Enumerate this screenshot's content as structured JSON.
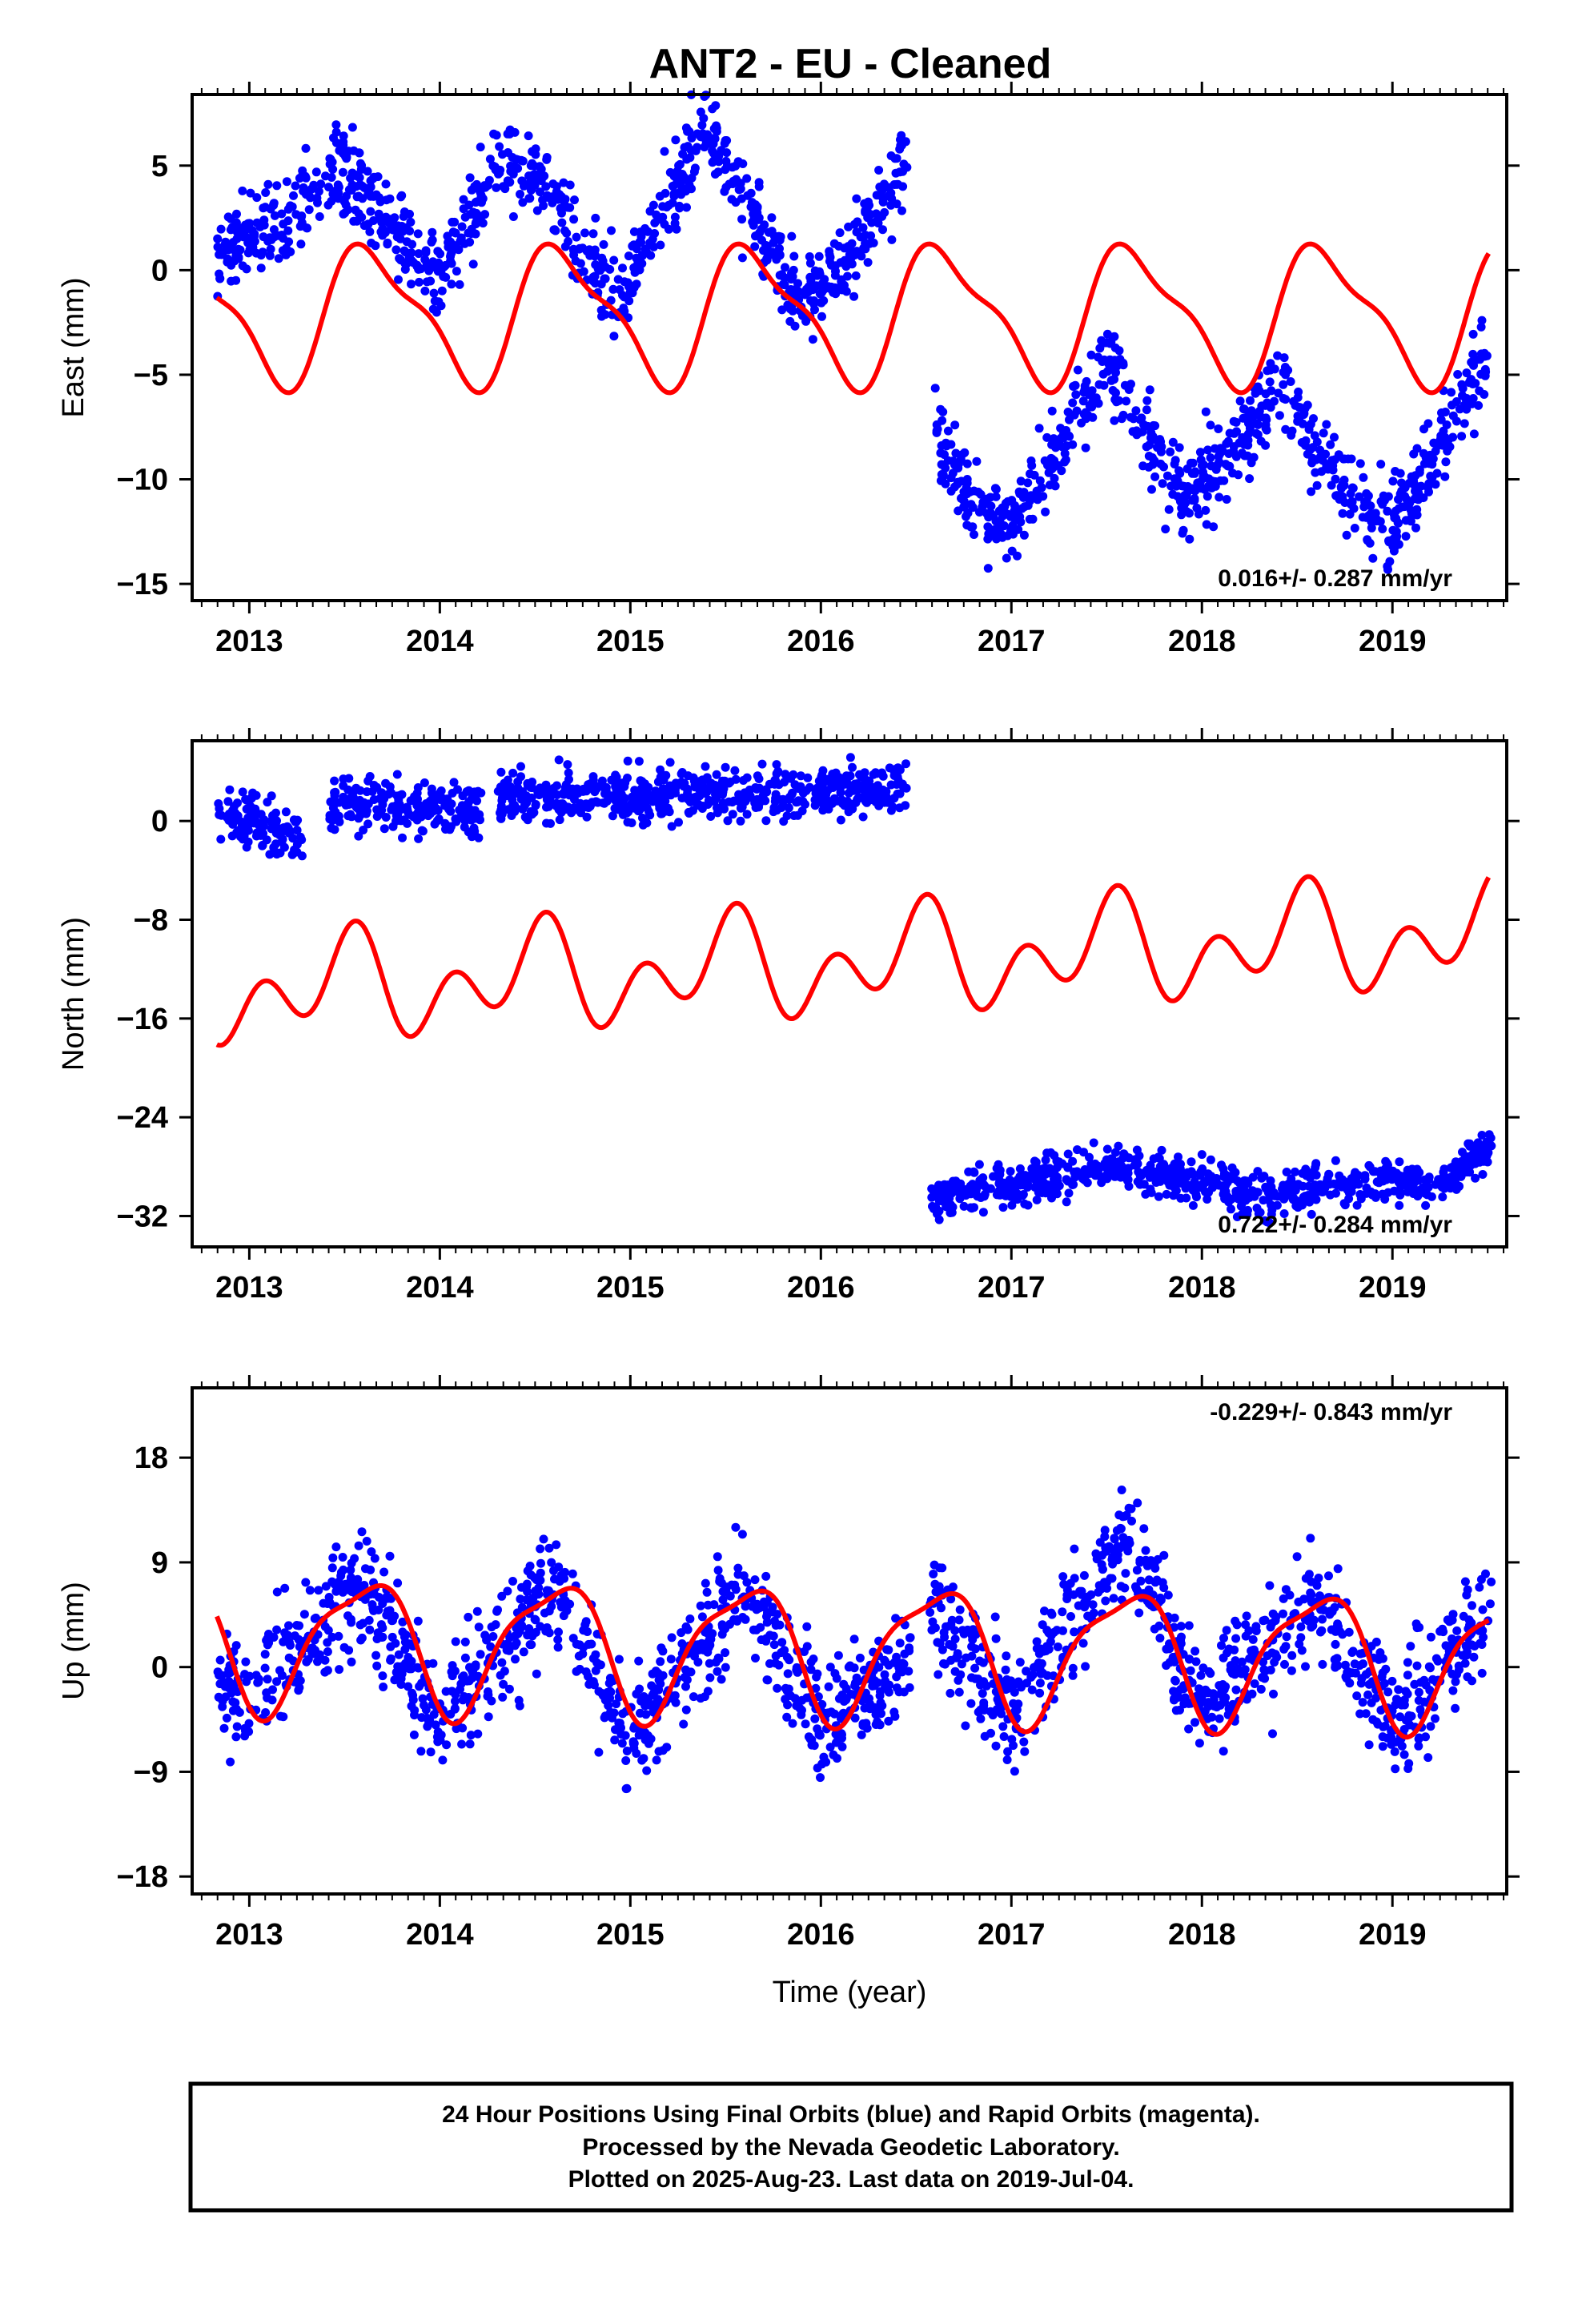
{
  "title": "ANT2  - EU - Cleaned",
  "colors": {
    "points": "#0000ff",
    "model": "#ff0000",
    "frame": "#000000"
  },
  "footer": {
    "line1": "24 Hour Positions Using Final Orbits (blue) and Rapid Orbits (magenta).",
    "line2": "Processed by the Nevada Geodetic Laboratory.",
    "line3": "Plotted on 2025-Aug-23. Last data on 2019-Jul-04."
  },
  "chart_data": [
    {
      "type": "scatter",
      "ylabel": "East (mm)",
      "xlabel": "",
      "rate_text": "0.016+/- 0.287 mm/yr",
      "rate_position": "bottom-right",
      "xlim": [
        2012.7,
        2019.6
      ],
      "ylim": [
        -15.8,
        8.4
      ],
      "xticks": [
        2013,
        2014,
        2015,
        2016,
        2017,
        2018,
        2019
      ],
      "xtick_labels": [
        "2013",
        "2014",
        "2015",
        "2016",
        "2017",
        "2018",
        "2019"
      ],
      "yticks": [
        5,
        0,
        -5,
        -10,
        -15
      ],
      "ytick_labels": [
        "5",
        "0",
        "−5",
        "−10",
        "−15"
      ],
      "series": [
        {
          "kind": "points",
          "segments": [
            {
              "x_range": [
                2012.83,
                2016.47
              ],
              "trend": [
                [
                  2012.83,
                  0.5
                ],
                [
                  2013.3,
                  3.5
                ],
                [
                  2013.47,
                  5.0
                ],
                [
                  2013.9,
                  0.5
                ],
                [
                  2014.0,
                  -0.5
                ],
                [
                  2014.3,
                  5.0
                ],
                [
                  2014.5,
                  4.5
                ],
                [
                  2014.95,
                  -1.5
                ],
                [
                  2015.1,
                  2.0
                ],
                [
                  2015.4,
                  7.0
                ],
                [
                  2015.55,
                  4.0
                ],
                [
                  2015.9,
                  -1.5
                ],
                [
                  2016.1,
                  0.0
                ],
                [
                  2016.47,
                  5.5
                ]
              ],
              "scatter": 1.4
            },
            {
              "x_range": [
                2016.6,
                2019.5
              ],
              "trend": [
                [
                  2016.6,
                  -7.5
                ],
                [
                  2016.75,
                  -10.5
                ],
                [
                  2017.0,
                  -12.5
                ],
                [
                  2017.5,
                  -4.0
                ],
                [
                  2017.6,
                  -6.5
                ],
                [
                  2017.9,
                  -11.0
                ],
                [
                  2018.3,
                  -7.0
                ],
                [
                  2018.45,
                  -5.0
                ],
                [
                  2018.6,
                  -9.0
                ],
                [
                  2019.0,
                  -12.5
                ],
                [
                  2019.5,
                  -4.0
                ]
              ],
              "scatter": 1.4
            }
          ]
        },
        {
          "kind": "model",
          "mean": -2.1,
          "amp1": -3.1,
          "phase1": 0.15,
          "amp2": 1.0,
          "phase2": 0.0
        }
      ]
    },
    {
      "type": "scatter",
      "ylabel": "North (mm)",
      "xlabel": "",
      "rate_text": "0.722+/- 0.284 mm/yr",
      "rate_position": "bottom-right",
      "xlim": [
        2012.7,
        2019.6
      ],
      "ylim": [
        -34.5,
        6.5
      ],
      "xticks": [
        2013,
        2014,
        2015,
        2016,
        2017,
        2018,
        2019
      ],
      "xtick_labels": [
        "2013",
        "2014",
        "2015",
        "2016",
        "2017",
        "2018",
        "2019"
      ],
      "yticks": [
        0,
        -8,
        -16,
        -24,
        -32
      ],
      "ytick_labels": [
        "0",
        "−8",
        "−16",
        "−24",
        "−32"
      ],
      "series": [
        {
          "kind": "points",
          "segments": [
            {
              "x_range": [
                2012.83,
                2013.28
              ],
              "trend": [
                [
                  2012.83,
                  0.5
                ],
                [
                  2013.28,
                  -1.0
                ]
              ],
              "scatter": 1.6
            },
            {
              "x_range": [
                2013.42,
                2014.22
              ],
              "trend": [
                [
                  2013.42,
                  1.5
                ],
                [
                  2014.22,
                  1.0
                ]
              ],
              "scatter": 1.6
            },
            {
              "x_range": [
                2014.3,
                2016.45
              ],
              "trend": [
                [
                  2014.3,
                  2.0
                ],
                [
                  2016.45,
                  2.5
                ]
              ],
              "scatter": 1.5
            },
            {
              "x_range": [
                2016.58,
                2019.52
              ],
              "trend": [
                [
                  2016.58,
                  -31.0
                ],
                [
                  2017.0,
                  -29.5
                ],
                [
                  2017.5,
                  -28.0
                ],
                [
                  2018.0,
                  -29.0
                ],
                [
                  2018.3,
                  -30.5
                ],
                [
                  2018.6,
                  -29.5
                ],
                [
                  2019.0,
                  -29.0
                ],
                [
                  2019.25,
                  -29.5
                ],
                [
                  2019.5,
                  -26.5
                ]
              ],
              "scatter": 1.2
            }
          ]
        },
        {
          "kind": "model",
          "mean": -11.5,
          "amp1": -2.5,
          "phase1": 0.0,
          "amp2": 3.0,
          "phase2": 0.07,
          "trend_per_year": 0.72
        }
      ]
    },
    {
      "type": "scatter",
      "ylabel": "Up (mm)",
      "xlabel": "Time (year)",
      "rate_text": "-0.229+/- 0.843 mm/yr",
      "rate_position": "top-right",
      "xlim": [
        2012.7,
        2019.6
      ],
      "ylim": [
        -19.5,
        24.0
      ],
      "xticks": [
        2013,
        2014,
        2015,
        2016,
        2017,
        2018,
        2019
      ],
      "xtick_labels": [
        "2013",
        "2014",
        "2015",
        "2016",
        "2017",
        "2018",
        "2019"
      ],
      "yticks": [
        18,
        9,
        0,
        -9,
        -18
      ],
      "ytick_labels": [
        "18",
        "9",
        "0",
        "−9",
        "−18"
      ],
      "series": [
        {
          "kind": "points",
          "segments": [
            {
              "x_range": [
                2012.83,
                2016.47
              ],
              "trend": [
                [
                  2012.83,
                  -1.0
                ],
                [
                  2013.0,
                  -2.0
                ],
                [
                  2013.6,
                  7.0
                ],
                [
                  2014.0,
                  -4.0
                ],
                [
                  2014.6,
                  7.0
                ],
                [
                  2015.0,
                  -6.0
                ],
                [
                  2015.6,
                  7.0
                ],
                [
                  2016.0,
                  -5.0
                ],
                [
                  2016.47,
                  1.0
                ]
              ],
              "scatter": 3.5
            },
            {
              "x_range": [
                2016.55,
                2019.52
              ],
              "trend": [
                [
                  2016.55,
                  6.0
                ],
                [
                  2017.0,
                  -4.0
                ],
                [
                  2017.6,
                  12.0
                ],
                [
                  2018.0,
                  -4.0
                ],
                [
                  2018.6,
                  6.0
                ],
                [
                  2019.0,
                  -5.0
                ],
                [
                  2019.52,
                  5.0
                ]
              ],
              "scatter": 3.5
            }
          ]
        },
        {
          "kind": "model",
          "mean": 1.5,
          "amp1": -5.5,
          "phase1": 0.1,
          "amp2": 1.5,
          "phase2": 0.3,
          "trend_per_year": -0.23
        }
      ]
    }
  ]
}
